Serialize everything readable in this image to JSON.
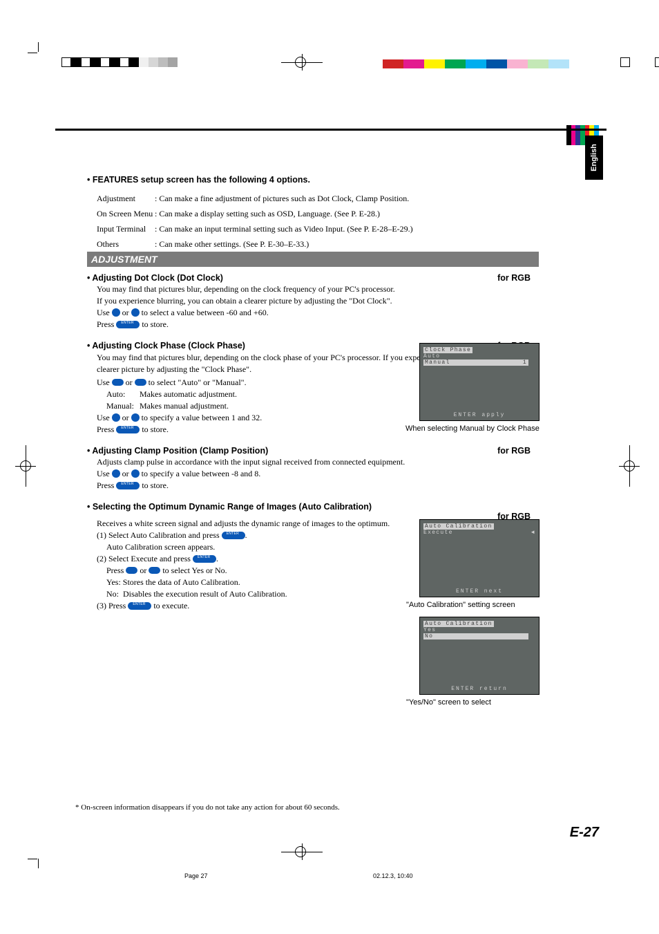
{
  "crop_marks": {
    "color": "#000000"
  },
  "density_squares_left": [
    "#ffffff",
    "#000000",
    "#ffffff",
    "#000000",
    "#ffffff",
    "#000000",
    "#ffffff",
    "#000000",
    "#f0f0f0",
    "#d6d6d6",
    "#bdbdbd",
    "#a4a4a4"
  ],
  "density_squares_right": [
    "#ffffff",
    "#ffffff"
  ],
  "color_boxes": [
    "#d02424",
    "#e31b8f",
    "#fff200",
    "#00a651",
    "#00aeef",
    "#0054a6",
    "#f9b3d1",
    "#c4e8b6",
    "#b3e3f9"
  ],
  "mini_bar_colors": [
    "#000000",
    "#ec008c",
    "#2e3192",
    "#00a651",
    "#ed1c24",
    "#fff200",
    "#00aeef"
  ],
  "english_tab": "English",
  "features": {
    "title": "• FEATURES setup screen has the following 4 options.",
    "rows": [
      {
        "term": "Adjustment",
        "desc": ": Can make a fine adjustment of pictures such as Dot Clock, Clamp Position."
      },
      {
        "term": "On Screen Menu",
        "desc": ": Can make a display setting such as OSD, Language. (See P. E-28.)"
      },
      {
        "term": "Input Terminal",
        "desc": ": Can make an input terminal setting such as Video Input. (See P. E-28–E-29.)"
      },
      {
        "term": "Others",
        "desc": ": Can make other settings. (See P. E-30–E-33.)"
      }
    ]
  },
  "adjustment_bar": "ADJUSTMENT",
  "dotclock": {
    "title": "• Adjusting Dot Clock (Dot Clock)",
    "tag": "for RGB",
    "p1": "You may find that pictures blur, depending on the clock frequency of your PC's processor.",
    "p2": "If you experience blurring, you can obtain a clearer picture by adjusting the \"Dot Clock\".",
    "p3a": "Use ",
    "p3b": " or ",
    "p3c": " to select a value between -60 and +60.",
    "p4a": "Press ",
    "p4b": " to store."
  },
  "clockphase": {
    "title": "• Adjusting Clock Phase (Clock Phase)",
    "tag": "for RGB",
    "p1": "You may find that pictures blur, depending on the clock phase of your PC's processor.  If you experience blurring, you can obtain a clearer picture by adjusting the \"Clock Phase\".",
    "p2a": "Use ",
    "p2b": " or ",
    "p2c": " to select \"Auto\" or \"Manual\".",
    "auto_l": "Auto:",
    "auto_r": "Makes automatic adjustment.",
    "man_l": "Manual:",
    "man_r": "Makes manual adjustment.",
    "p3a": "Use ",
    "p3b": " or ",
    "p3c": " to specify a value between 1 and 32.",
    "p4a": "Press ",
    "p4b": " to store."
  },
  "clamp": {
    "title": "• Adjusting Clamp Position (Clamp Position)",
    "tag": "for RGB",
    "p1": "Adjusts clamp pulse in accordance with the input signal received from connected equipment.",
    "p2a": "Use ",
    "p2b": " or ",
    "p2c": " to specify a value between -8 and 8.",
    "p3a": "Press ",
    "p3b": " to store."
  },
  "autocal": {
    "title": "• Selecting the Optimum Dynamic Range of Images (Auto Calibration)",
    "tag": "for RGB",
    "p1": "Receives a white screen signal and adjusts the dynamic range of images to the optimum.",
    "s1a": "(1) Select Auto Calibration and press ",
    "s1b": ".",
    "s1sub": "Auto Calibration screen appears.",
    "s2a": "(2) Select Execute and press ",
    "s2b": ".",
    "s2sub1a": "Press ",
    "s2sub1b": " or ",
    "s2sub1c": " to select Yes or No.",
    "s2sub2": "Yes: Stores the data of Auto Calibration.",
    "s2sub3": "No:  Disables the execution result of Auto Calibration.",
    "s3a": "(3) Press ",
    "s3b": " to execute."
  },
  "screen1": {
    "l1": "Clock Phase",
    "l2": "Auto",
    "l3": "Manual",
    "bar_val": "1",
    "foot": "ENTER apply",
    "caption": "When selecting Manual by Clock Phase"
  },
  "screen2": {
    "l1": "Auto Calibration",
    "l2": "Execute",
    "mark": "◄",
    "foot": "ENTER next",
    "caption": "\"Auto Calibration\" setting screen"
  },
  "screen3": {
    "l1": "Auto Calibration",
    "l2": "Yes",
    "l3": "No",
    "foot": "ENTER return",
    "caption": "\"Yes/No\" screen to select"
  },
  "foot_note": "* On-screen information disappears if you do not take any action for about 60 seconds.",
  "page_num": "E-27",
  "footer_left": "Page 27",
  "footer_right": "02.12.3, 10:40"
}
